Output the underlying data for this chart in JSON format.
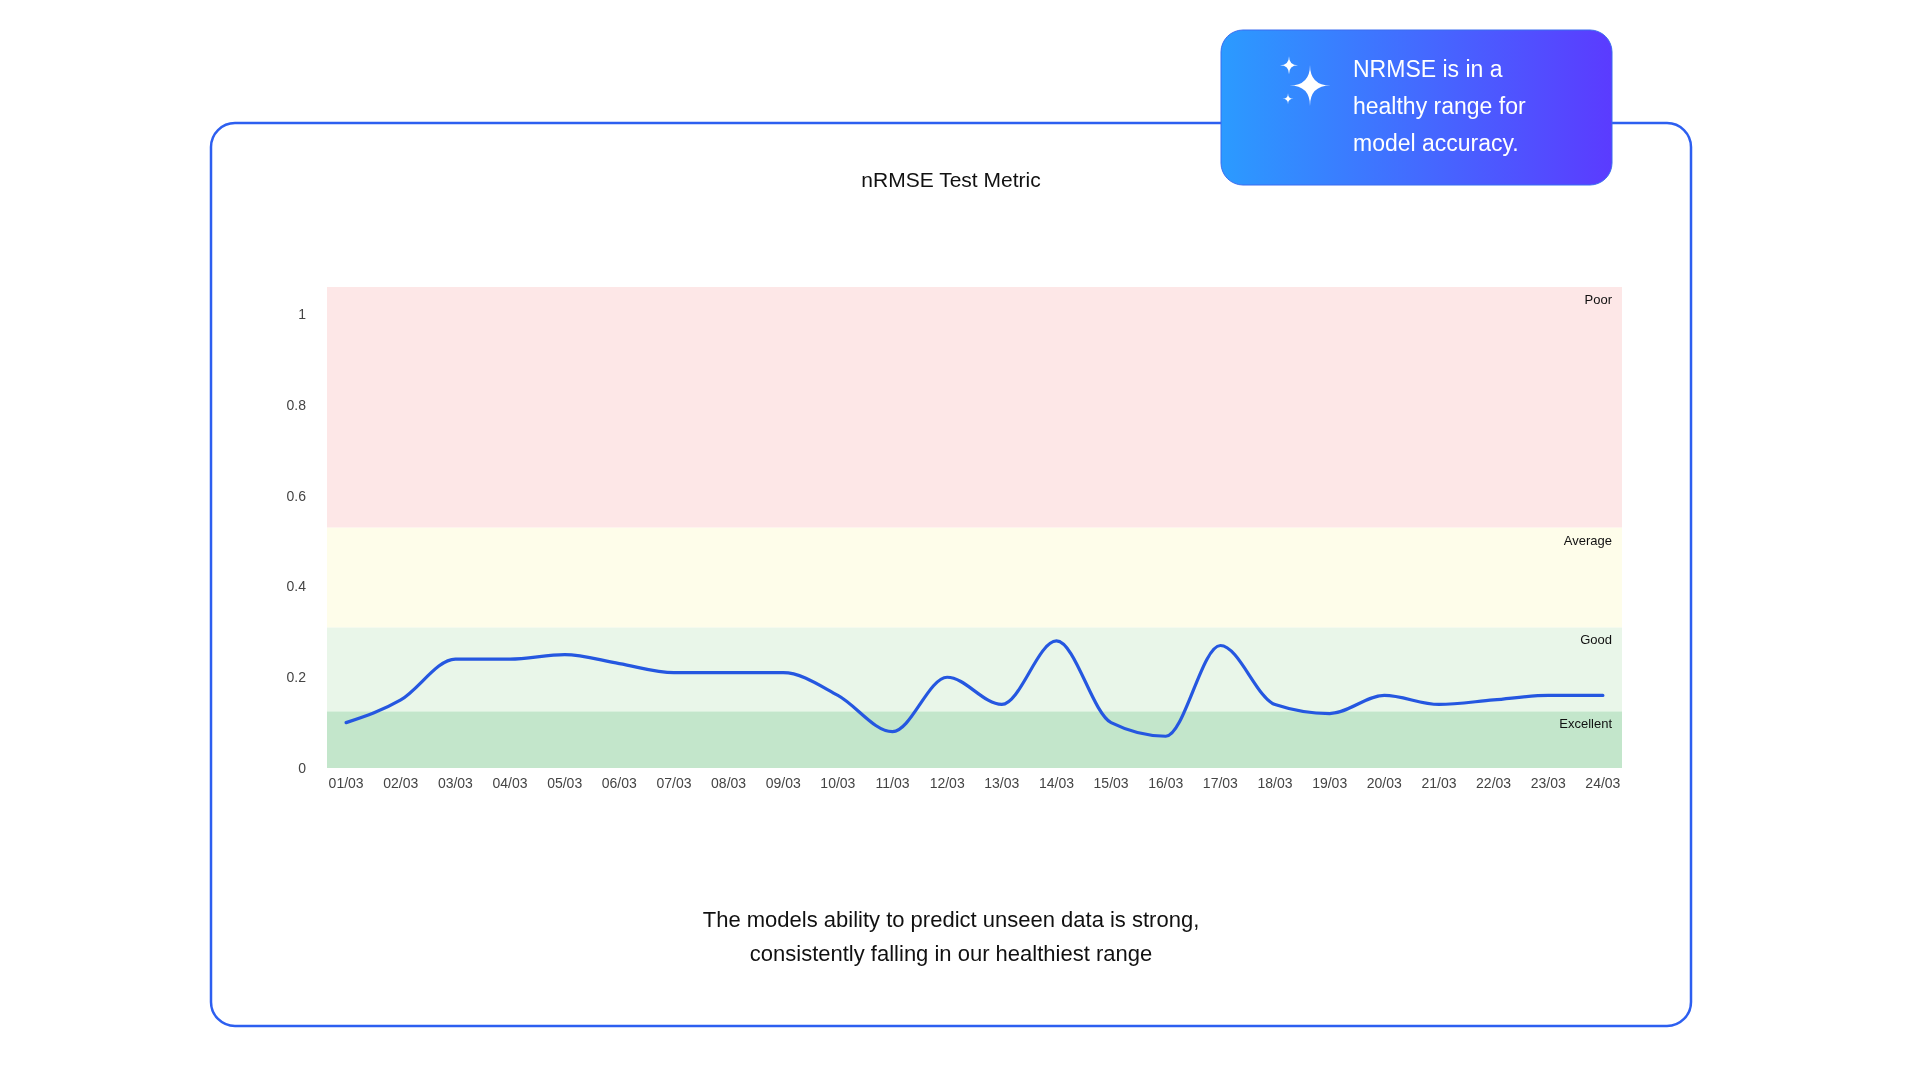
{
  "chart_data": {
    "type": "line",
    "title": "nRMSE Test Metric",
    "categories": [
      "01/03",
      "02/03",
      "03/03",
      "04/03",
      "05/03",
      "06/03",
      "07/03",
      "08/03",
      "09/03",
      "10/03",
      "11/03",
      "12/03",
      "13/03",
      "14/03",
      "15/03",
      "16/03",
      "17/03",
      "18/03",
      "19/03",
      "20/03",
      "21/03",
      "22/03",
      "23/03",
      "24/03"
    ],
    "series": [
      {
        "color": "#2557e0",
        "values": [
          0.1,
          0.15,
          0.24,
          0.24,
          0.25,
          0.23,
          0.21,
          0.21,
          0.21,
          0.16,
          0.08,
          0.2,
          0.14,
          0.28,
          0.1,
          0.07,
          0.27,
          0.14,
          0.12,
          0.16,
          0.14,
          0.15,
          0.16,
          0.16
        ]
      }
    ],
    "ylim": [
      0,
      1.06
    ],
    "yticks": [
      0,
      0.2,
      0.4,
      0.6,
      0.8,
      1
    ],
    "bands": [
      {
        "axis": "y",
        "from": 0,
        "to": 0.125,
        "label": "Excellent",
        "color": "#c3e6cb"
      },
      {
        "axis": "y",
        "from": 0.125,
        "to": 0.31,
        "label": "Good",
        "color": "#e9f6e9"
      },
      {
        "axis": "y",
        "from": 0.31,
        "to": 0.53,
        "label": "Average",
        "color": "#fefdea"
      },
      {
        "axis": "y",
        "from": 0.53,
        "to": 1.06,
        "label": "Poor",
        "color": "#fde7e7"
      }
    ],
    "annotations": [
      "NRMSE is in a healthy range for model accuracy.",
      "The models ability to predict unseen data is strong, consistently falling in our healthiest range"
    ]
  }
}
